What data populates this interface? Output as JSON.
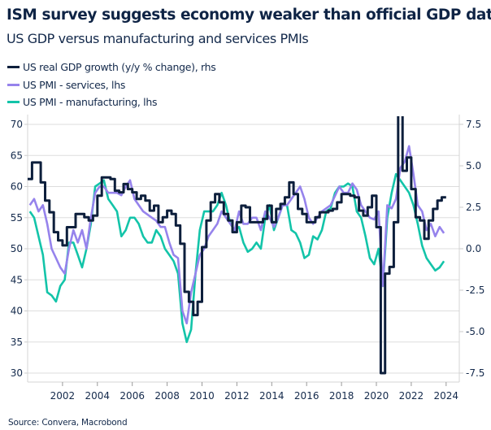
{
  "title": "ISM survey suggests economy weaker than official GDP data",
  "subtitle": "US GDP versus manufacturing and services PMIs",
  "source": "Source: Convera, Macrobond",
  "chart_data": {
    "type": "line",
    "frequency": "quarterly",
    "start": "2000Q1",
    "x_ticks": [
      "2002",
      "2004",
      "2006",
      "2008",
      "2010",
      "2012",
      "2014",
      "2016",
      "2018",
      "2020",
      "2022",
      "2024"
    ],
    "xlim": [
      2000,
      2024.6
    ],
    "y_left": {
      "ticks": [
        "30",
        "35",
        "40",
        "45",
        "50",
        "55",
        "60",
        "65",
        "70"
      ],
      "range": [
        30,
        70
      ]
    },
    "y_right": {
      "ticks": [
        "-7.5",
        "-5.0",
        "-2.5",
        "0.0",
        "2.5",
        "5.0",
        "7.5"
      ],
      "range": [
        -7.5,
        7.5
      ]
    },
    "grid": true,
    "legend_placement": "top-left",
    "series": [
      {
        "name": "US real GDP growth (y/y % change), rhs",
        "axis": "right",
        "color": "#0d1f3c",
        "values": [
          4.2,
          5.2,
          5.2,
          4.0,
          2.9,
          2.2,
          1.0,
          0.5,
          0.2,
          1.3,
          1.3,
          2.1,
          2.1,
          1.9,
          1.7,
          2.0,
          3.2,
          4.3,
          4.3,
          4.2,
          3.5,
          3.4,
          3.9,
          3.6,
          3.4,
          3.0,
          3.2,
          2.9,
          2.3,
          2.6,
          1.6,
          1.9,
          2.3,
          2.1,
          1.4,
          0.3,
          -2.6,
          -3.2,
          -4.0,
          -3.2,
          0.1,
          1.7,
          2.8,
          3.3,
          2.8,
          2.1,
          1.7,
          1.0,
          1.6,
          2.6,
          2.5,
          1.6,
          1.6,
          1.6,
          1.8,
          2.6,
          1.6,
          2.4,
          2.7,
          3.1,
          4.0,
          3.3,
          2.4,
          2.1,
          1.6,
          1.6,
          1.9,
          2.2,
          2.2,
          2.3,
          2.4,
          2.8,
          3.3,
          3.3,
          3.2,
          3.1,
          2.3,
          2.0,
          2.5,
          3.2,
          1.3,
          -7.5,
          -1.5,
          -1.1,
          1.6,
          12.0,
          4.7,
          5.5,
          3.6,
          1.9,
          1.7,
          0.6,
          1.7,
          2.4,
          2.9,
          3.1
        ]
      },
      {
        "name": "US PMI - services, lhs",
        "axis": "left",
        "color": "#9683ec",
        "values": [
          57,
          58,
          56,
          57,
          54,
          50,
          48.5,
          47,
          46,
          50,
          53,
          51,
          53,
          50,
          55,
          59,
          60,
          60,
          59,
          59,
          59,
          58.6,
          60,
          61,
          58,
          57,
          56,
          55.5,
          55,
          54.5,
          53.5,
          53.5,
          51,
          49,
          48.5,
          40,
          38,
          43,
          46,
          49,
          50,
          52,
          53,
          54,
          56,
          55,
          54,
          53,
          56,
          54,
          54,
          55,
          55,
          53,
          56,
          55,
          53.5,
          55,
          57,
          57,
          58,
          59,
          60,
          58,
          55,
          54,
          55,
          56,
          56.5,
          57,
          58.5,
          60,
          59,
          59,
          60.5,
          59.5,
          57,
          56,
          55,
          54.7,
          56,
          44,
          57,
          56.5,
          58,
          63,
          64,
          66.5,
          62,
          57,
          56,
          53,
          54,
          52,
          53.5,
          52.5
        ]
      },
      {
        "name": "US PMI - manufacturing, lhs",
        "axis": "left",
        "color": "#13c4a9",
        "values": [
          56,
          55,
          52,
          49,
          43,
          42.5,
          41.5,
          44,
          45,
          51,
          51,
          49,
          47,
          50,
          54,
          60,
          60.5,
          61,
          58,
          57,
          56,
          52,
          53,
          55,
          55,
          54,
          52,
          51,
          51,
          53,
          52,
          50,
          49,
          48,
          46,
          38,
          35,
          37,
          46,
          53,
          56,
          56,
          56,
          57,
          59,
          57,
          54,
          53,
          53.5,
          51,
          49.5,
          50,
          51,
          50,
          55,
          57,
          53,
          55,
          57,
          57,
          53,
          52.5,
          51,
          48.5,
          49,
          52,
          51.5,
          53,
          56,
          56.5,
          59,
          60,
          60,
          60.5,
          60,
          56,
          55,
          52,
          48.5,
          47.5,
          50,
          44,
          55,
          59,
          62,
          61,
          60,
          59,
          57,
          54,
          50.5,
          48.5,
          47.5,
          46.5,
          47,
          48
        ]
      }
    ]
  }
}
